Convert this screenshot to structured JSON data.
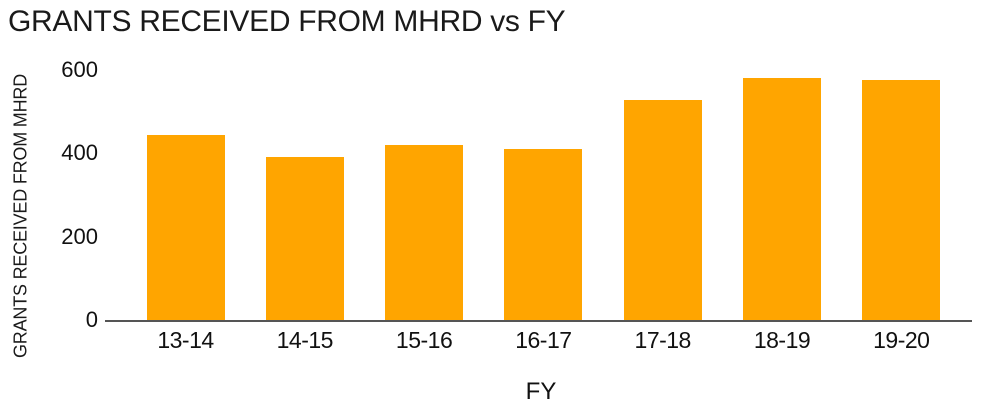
{
  "chart_data": {
    "type": "bar",
    "title": "GRANTS RECEIVED FROM MHRD vs FY",
    "xlabel": "FY",
    "ylabel": "GRANTS RECEIVED FROM MHRD",
    "categories": [
      "13-14",
      "14-15",
      "15-16",
      "16-17",
      "17-18",
      "18-19",
      "19-20"
    ],
    "values": [
      445,
      392,
      421,
      410,
      528,
      582,
      577
    ],
    "ylim": [
      0,
      600
    ],
    "yticks": [
      0,
      200,
      400,
      600
    ],
    "grid": false,
    "legend": "none",
    "bar_color": "#FFA500",
    "axis_line_color": "#555555",
    "text_color": "#111111"
  }
}
